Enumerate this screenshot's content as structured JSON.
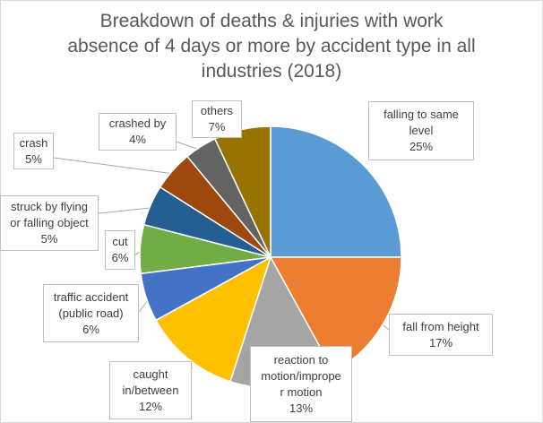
{
  "chart_data": {
    "type": "pie",
    "title_lines": [
      "Breakdown of deaths & injuries with work",
      "absence of 4 days or more by accident type in all",
      "industries (2018)"
    ],
    "slices": [
      {
        "label_lines": [
          "falling to same",
          "level"
        ],
        "label": "falling to same level",
        "value": 25,
        "pct": "25%",
        "color": "#5b9bd5"
      },
      {
        "label_lines": [
          "fall from height"
        ],
        "label": "fall from height",
        "value": 17,
        "pct": "17%",
        "color": "#ed7d31"
      },
      {
        "label_lines": [
          "reaction to",
          "motion/imprope",
          "r motion"
        ],
        "label": "reaction to motion/improper motion",
        "value": 13,
        "pct": "13%",
        "color": "#a5a5a5"
      },
      {
        "label_lines": [
          "caught",
          "in/between"
        ],
        "label": "caught in/between",
        "value": 12,
        "pct": "12%",
        "color": "#ffc000"
      },
      {
        "label_lines": [
          "traffic accident",
          "(public road)"
        ],
        "label": "traffic accident (public road)",
        "value": 6,
        "pct": "6%",
        "color": "#4472c4"
      },
      {
        "label_lines": [
          "cut"
        ],
        "label": "cut",
        "value": 6,
        "pct": "6%",
        "color": "#70ad47"
      },
      {
        "label_lines": [
          "struck by flying",
          "or falling object"
        ],
        "label": "struck by flying or falling object",
        "value": 5,
        "pct": "5%",
        "color": "#255e91"
      },
      {
        "label_lines": [
          "crash"
        ],
        "label": "crash",
        "value": 5,
        "pct": "5%",
        "color": "#9e480e"
      },
      {
        "label_lines": [
          "crashed by"
        ],
        "label": "crashed by",
        "value": 4,
        "pct": "4%",
        "color": "#636363"
      },
      {
        "label_lines": [
          "others"
        ],
        "label": "others",
        "value": 7,
        "pct": "7%",
        "color": "#997300"
      }
    ]
  }
}
